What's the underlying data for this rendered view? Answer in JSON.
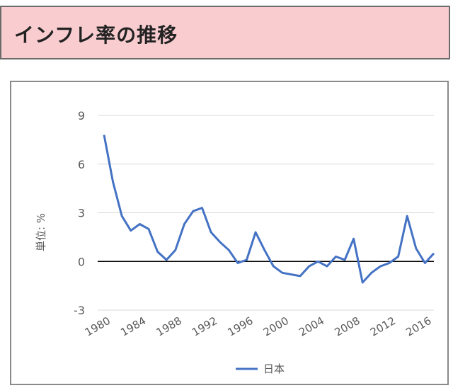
{
  "header": {
    "title": "インフレ率の推移"
  },
  "chart_data": {
    "type": "line",
    "title": "",
    "xlabel": "",
    "ylabel": "単位: %",
    "ylim": [
      -3,
      9
    ],
    "yticks": [
      -3,
      0,
      3,
      6,
      9
    ],
    "xtick_labels": [
      "1980",
      "1984",
      "1988",
      "1992",
      "1996",
      "2000",
      "2004",
      "2008",
      "2012",
      "2016"
    ],
    "x": [
      1980,
      1981,
      1982,
      1983,
      1984,
      1985,
      1986,
      1987,
      1988,
      1989,
      1990,
      1991,
      1992,
      1993,
      1994,
      1995,
      1996,
      1997,
      1998,
      1999,
      2000,
      2001,
      2002,
      2003,
      2004,
      2005,
      2006,
      2007,
      2008,
      2009,
      2010,
      2011,
      2012,
      2013,
      2014,
      2015,
      2016,
      2017
    ],
    "series": [
      {
        "name": "日本",
        "values": [
          7.8,
          4.9,
          2.8,
          1.9,
          2.3,
          2.0,
          0.6,
          0.1,
          0.7,
          2.3,
          3.1,
          3.3,
          1.8,
          1.2,
          0.7,
          -0.1,
          0.1,
          1.8,
          0.7,
          -0.3,
          -0.7,
          -0.8,
          -0.9,
          -0.3,
          0.0,
          -0.3,
          0.3,
          0.1,
          1.4,
          -1.3,
          -0.7,
          -0.3,
          -0.1,
          0.3,
          2.8,
          0.8,
          -0.1,
          0.5
        ]
      }
    ],
    "grid": true,
    "legend": "bottom",
    "colors": {
      "line": "#4472c4",
      "grid": "#d9d9d9",
      "zero_line": "#000000"
    }
  }
}
